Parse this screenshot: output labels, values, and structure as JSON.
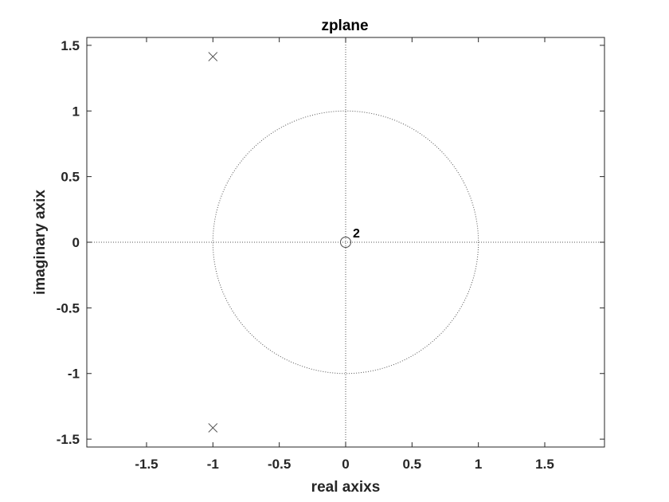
{
  "chart_data": {
    "type": "scatter",
    "title": "zplane",
    "xlabel": "real axixs",
    "ylabel": "imaginary axix",
    "xlim": [
      -1.95,
      1.95
    ],
    "ylim": [
      -1.56,
      1.56
    ],
    "xticks": [
      -1.5,
      -1,
      -0.5,
      0,
      0.5,
      1,
      1.5
    ],
    "xtick_labels": [
      "-1.5",
      "-1",
      "-0.5",
      "0",
      "0.5",
      "1",
      "1.5"
    ],
    "yticks": [
      -1.5,
      -1,
      -0.5,
      0,
      0.5,
      1,
      1.5
    ],
    "ytick_labels": [
      "-1.5",
      "-1",
      "-0.5",
      "0",
      "0.5",
      "1",
      "1.5"
    ],
    "grid": false,
    "unit_circle": true,
    "zeros": [
      {
        "x": 0,
        "y": 0,
        "multiplicity": 2,
        "label": "2"
      }
    ],
    "poles": [
      {
        "x": -1,
        "y": 1.414
      },
      {
        "x": -1,
        "y": -1.414
      }
    ]
  },
  "colors": {
    "background": "#ffffff",
    "axes": "#262626",
    "markers": "#4d4d4d",
    "reference_lines": "#555555"
  }
}
